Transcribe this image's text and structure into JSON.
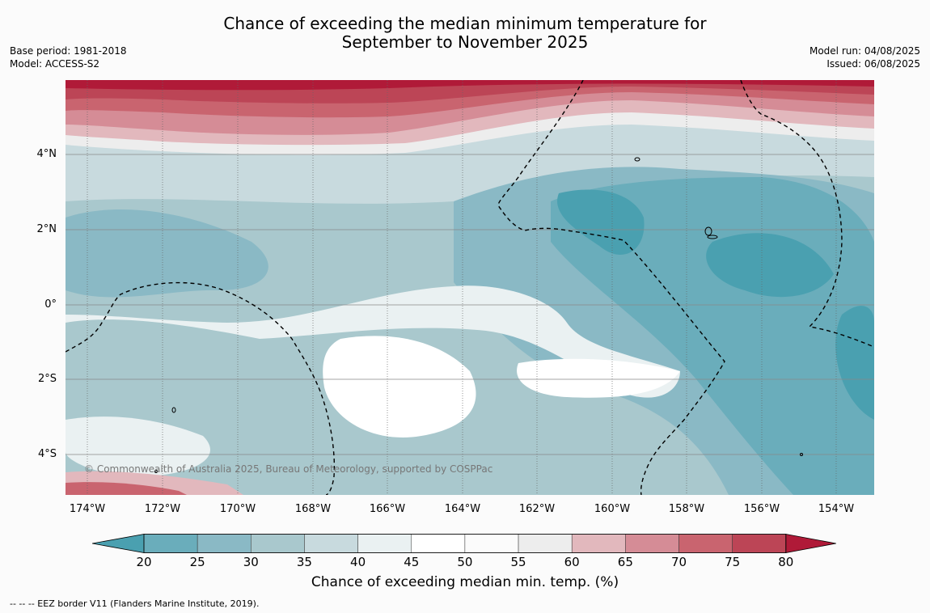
{
  "title_line1": "Chance of exceeding the median minimum temperature for",
  "title_line2": "September to November 2025",
  "base_period": "Base period: 1981-2018",
  "model": "Model: ACCESS-S2",
  "model_run": "Model run: 04/08/2025",
  "issued": "Issued: 06/08/2025",
  "copyright": "© Commonwealth of Australia 2025, Bureau of Meteorology, supported by COSPPac",
  "lat_labels": [
    "4°N",
    "2°N",
    "0°",
    "2°S",
    "4°S"
  ],
  "lon_labels": [
    "174°W",
    "172°W",
    "170°W",
    "168°W",
    "166°W",
    "164°W",
    "162°W",
    "160°W",
    "158°W",
    "156°W",
    "154°W"
  ],
  "colorbar": {
    "ticks": [
      "20",
      "25",
      "30",
      "35",
      "40",
      "45",
      "50",
      "55",
      "60",
      "65",
      "70",
      "75",
      "80"
    ],
    "colors": [
      "#4aa0b0",
      "#6aadbb",
      "#8ab9c5",
      "#a9c8cd",
      "#c8dade",
      "#eaf1f2",
      "#ffffff",
      "#fbfbfb",
      "#ededed",
      "#e2b8bd",
      "#d58c96",
      "#c9646f",
      "#bc4556",
      "#b01a38"
    ],
    "title": "Chance of exceeding median min. temp. (%)"
  },
  "footnote": "--  --  -- EEZ border V11 (Flanders Marine Institute, 2019)."
}
